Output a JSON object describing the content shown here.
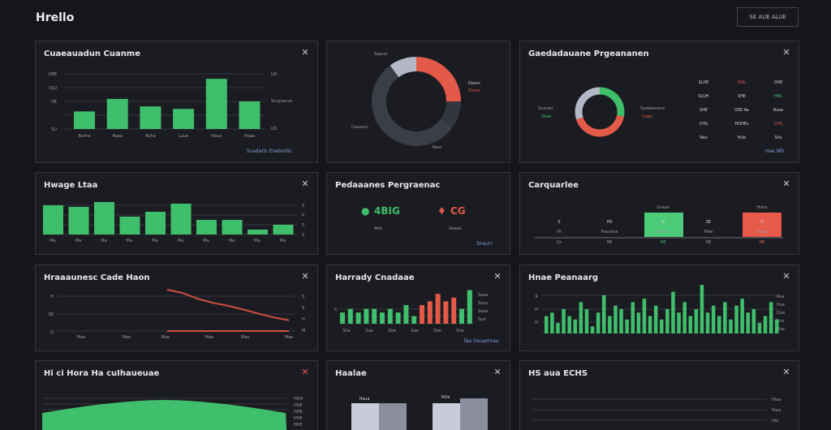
{
  "header": {
    "title": "Hrello",
    "button_label": "SE AUE ALUE"
  },
  "colors": {
    "green": "#3fbf6b",
    "red": "#e35a48",
    "dark": "#3b3d47",
    "slate": "#b3b7c6"
  },
  "panels": {
    "p1": {
      "title": "Cuaeauadun Cuanme",
      "footer": "Scedarls Enebrolls"
    },
    "p2": {
      "title": ""
    },
    "p3": {
      "title": "Gaedadauane Prgeananen",
      "footer": "Hae Wh"
    },
    "p4": {
      "title": "Hwage Ltaa"
    },
    "p5": {
      "title": "Pedaaanes Pergraenac",
      "footer": "Snaurr",
      "kpi1": "4BIG",
      "kpi1_sub": "Atle",
      "kpi2": "CG",
      "kpi2_sub": "Seaue"
    },
    "p6": {
      "title": "Carquarlee"
    },
    "p7": {
      "title": "Hraaaunesc Cade Haon"
    },
    "p8": {
      "title": "Harrady Cnadaae",
      "footer": "Tae Geuamrau"
    },
    "p9": {
      "title": "Hnae Peanaarg"
    },
    "p10": {
      "title": "Hi ci Hora Ha cuIhaueuae"
    },
    "p11": {
      "title": "Haalae"
    },
    "p12": {
      "title": "HS aua ECHS"
    }
  },
  "chart_data": [
    {
      "type": "bar",
      "title": "Cuaeauadun Cuanme",
      "categories": [
        "Burhe",
        "Reaa",
        "Ruha",
        "Luue",
        "Haua",
        "Hoaa"
      ],
      "values": [
        7,
        12,
        9,
        8,
        20,
        11
      ],
      "ylim": [
        0,
        22
      ]
    },
    {
      "type": "pie",
      "series": [
        {
          "name": "Saacer",
          "value": 25
        },
        {
          "name": "Deurs",
          "value": 10
        },
        {
          "name": "Csouecs",
          "value": 55
        },
        {
          "name": "Resc",
          "value": 10
        }
      ]
    },
    {
      "type": "pie",
      "title": "Gaedadauane Prgeananen",
      "series": [
        {
          "name": "Grae",
          "value": 28
        },
        {
          "name": "Coae",
          "value": 42
        },
        {
          "name": "Mune",
          "value": 30
        }
      ]
    },
    {
      "type": "bar",
      "title": "Hwage Ltaa",
      "values": [
        9,
        8.5,
        10,
        5.5,
        7,
        9.5,
        4.5,
        4.5,
        1.5,
        3
      ]
    },
    {
      "type": "line",
      "title": "Hraaaunesc Cade Haon",
      "x": [
        0,
        1,
        2,
        3,
        4,
        5,
        6,
        7,
        8
      ],
      "series": [
        {
          "name": "Mao",
          "values": [
            10,
            9.2,
            7.8,
            6.8,
            6.1,
            5.2,
            4.2,
            3.3,
            2.6
          ]
        },
        {
          "name": "Mao",
          "values": [
            0,
            0,
            0,
            0,
            0,
            0,
            0,
            0,
            0
          ]
        }
      ]
    },
    {
      "type": "bar",
      "title": "Harrady Cnadaae",
      "values": [
        3,
        4,
        3,
        4,
        4,
        3,
        4,
        3,
        5,
        2,
        5,
        6,
        8,
        6,
        7,
        4,
        9
      ],
      "highlight": [
        10,
        11,
        12,
        13,
        14
      ]
    },
    {
      "type": "bar",
      "title": "Hnae Peanaarg",
      "values": [
        5,
        6,
        3,
        7,
        5,
        4,
        9,
        7,
        2,
        6,
        11,
        5,
        8,
        7,
        4,
        9,
        6,
        10,
        5,
        8,
        4,
        7,
        12,
        6,
        9,
        5,
        7,
        14,
        6,
        8,
        5,
        9,
        4,
        8,
        10,
        6,
        7,
        3,
        5,
        9,
        4
      ]
    }
  ],
  "donut2": {
    "labels": [
      "Saacer",
      "Deurs",
      "Csouecs",
      "Resc"
    ]
  },
  "table3": {
    "rows": [
      [
        "SLHE",
        "RHL",
        "OHE"
      ],
      [
        "SLUH",
        "SHE",
        "HBL"
      ],
      [
        "SHE",
        "USE Ae",
        "Ruae"
      ],
      [
        "CHS",
        "HOHEs",
        "CHS"
      ],
      [
        "Nes",
        "HUe",
        "Shs"
      ]
    ]
  },
  "labels": {
    "p1_y": [
      "2ME",
      "1SU",
      "HE",
      "SU"
    ],
    "p1_r": [
      "UO",
      "Scrgnenus",
      "GS"
    ],
    "p1_x": [
      "Burhe",
      "Reaa",
      "Ruha",
      "Luue",
      "Haua",
      "Hoaa"
    ],
    "p3_left_a": "Gcenes",
    "p3_left_b": "Grae",
    "p3_right_a": "Sasbeauens",
    "p3_right_b": "Coae",
    "p6_top": [
      "Graue",
      "Hone"
    ],
    "p6_cols": [
      "S",
      "HS",
      "N",
      "SE",
      "H"
    ],
    "p6_sub": [
      "Hr",
      "Pausana",
      "Haaen",
      "Heel",
      "Heae"
    ],
    "p11_vals": [
      "Haua",
      "HOa"
    ]
  }
}
